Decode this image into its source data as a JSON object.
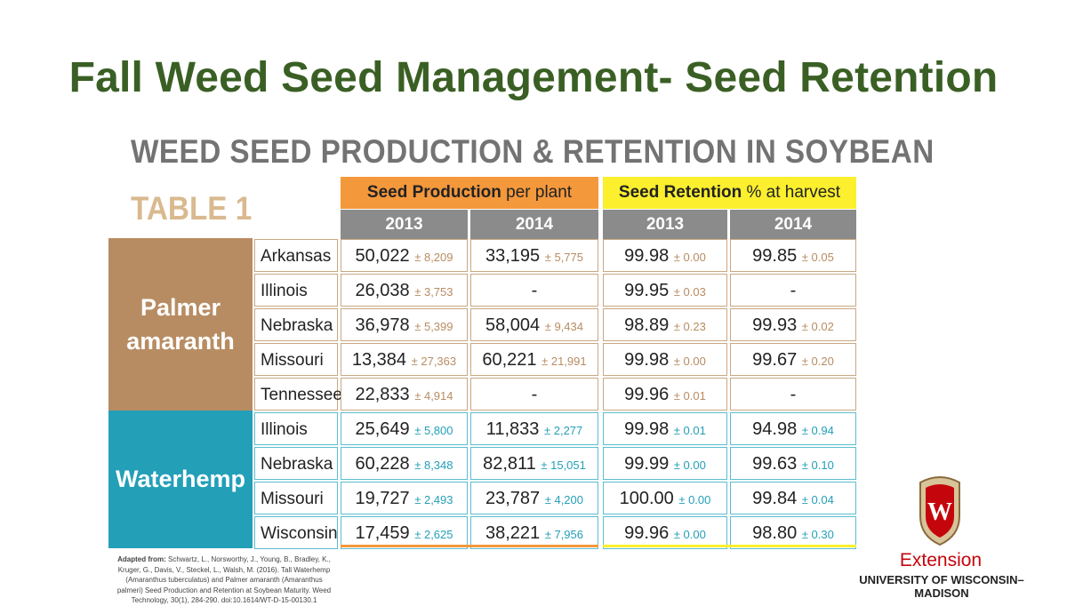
{
  "title": "Fall Weed Seed Management- Seed Retention",
  "table_heading": "WEED SEED PRODUCTION & RETENTION IN SOYBEAN",
  "table_number": "TABLE 1",
  "groups": {
    "production_bold": "Seed Production",
    "production_rest": " per plant",
    "retention_bold": "Seed Retention",
    "retention_rest": " % at harvest"
  },
  "years": [
    "2013",
    "2014",
    "2013",
    "2014"
  ],
  "species": {
    "palmer_line1": "Palmer",
    "palmer_line2": "amaranth",
    "waterhemp": "Waterhemp"
  },
  "rows": [
    {
      "state": "Arkansas",
      "p13": "50,022",
      "p13sd": "± 8,209",
      "p14": "33,195",
      "p14sd": "± 5,775",
      "r13": "99.98",
      "r13sd": "± 0.00",
      "r14": "99.85",
      "r14sd": "± 0.05"
    },
    {
      "state": "Illinois",
      "p13": "26,038",
      "p13sd": "± 3,753",
      "p14": "-",
      "p14sd": "",
      "r13": "99.95",
      "r13sd": "± 0.03",
      "r14": "-",
      "r14sd": ""
    },
    {
      "state": "Nebraska",
      "p13": "36,978",
      "p13sd": "± 5,399",
      "p14": "58,004",
      "p14sd": "± 9,434",
      "r13": "98.89",
      "r13sd": "± 0.23",
      "r14": "99.93",
      "r14sd": "± 0.02"
    },
    {
      "state": "Missouri",
      "p13": "13,384",
      "p13sd": "± 27,363",
      "p14": "60,221",
      "p14sd": "± 21,991",
      "r13": "99.98",
      "r13sd": "± 0.00",
      "r14": "99.67",
      "r14sd": "± 0.20"
    },
    {
      "state": "Tennessee",
      "p13": "22,833",
      "p13sd": "± 4,914",
      "p14": "-",
      "p14sd": "",
      "r13": "99.96",
      "r13sd": "± 0.01",
      "r14": "-",
      "r14sd": ""
    },
    {
      "state": "Illinois",
      "p13": "25,649",
      "p13sd": "± 5,800",
      "p14": "11,833",
      "p14sd": "± 2,277",
      "r13": "99.98",
      "r13sd": "± 0.01",
      "r14": "94.98",
      "r14sd": "± 0.94"
    },
    {
      "state": "Nebraska",
      "p13": "60,228",
      "p13sd": "± 8,348",
      "p14": "82,811",
      "p14sd": "± 15,051",
      "r13": "99.99",
      "r13sd": "± 0.00",
      "r14": "99.63",
      "r14sd": "± 0.10"
    },
    {
      "state": "Missouri",
      "p13": "19,727",
      "p13sd": "± 2,493",
      "p14": "23,787",
      "p14sd": "± 4,200",
      "r13": "100.00",
      "r13sd": "± 0.00",
      "r14": "99.84",
      "r14sd": "± 0.04"
    },
    {
      "state": "Wisconsin",
      "p13": "17,459",
      "p13sd": "± 2,625",
      "p14": "38,221",
      "p14sd": "± 7,956",
      "r13": "99.96",
      "r13sd": "± 0.00",
      "r14": "98.80",
      "r14sd": "± 0.30"
    }
  ],
  "citation": {
    "label": "Adapted from:",
    "text": " Schwartz, L., Norsworthy, J., Young, B., Bradley, K., Kruger, G., Davis, V., Steckel, L., Walsh, M. (2016). Tall Waterhemp (Amaranthus tuberculatus) and Palmer amaranth (Amaranthus palmeri) Seed Production and Retention at Soybean Maturity. Weed Technology, 30(1), 284-290. doi:10.1614/WT-D-15-00130.1"
  },
  "logo": {
    "extension": "Extension",
    "university": "UNIVERSITY OF WISCONSIN–MADISON",
    "crest_letter": "W"
  },
  "colors": {
    "title": "#3a5f24",
    "palmer": "#b88c62",
    "waterhemp": "#239fb8",
    "production_header": "#f4983c",
    "retention_header": "#fbef2e",
    "year_header": "#8b8b8b",
    "uw_red": "#c5050c"
  }
}
